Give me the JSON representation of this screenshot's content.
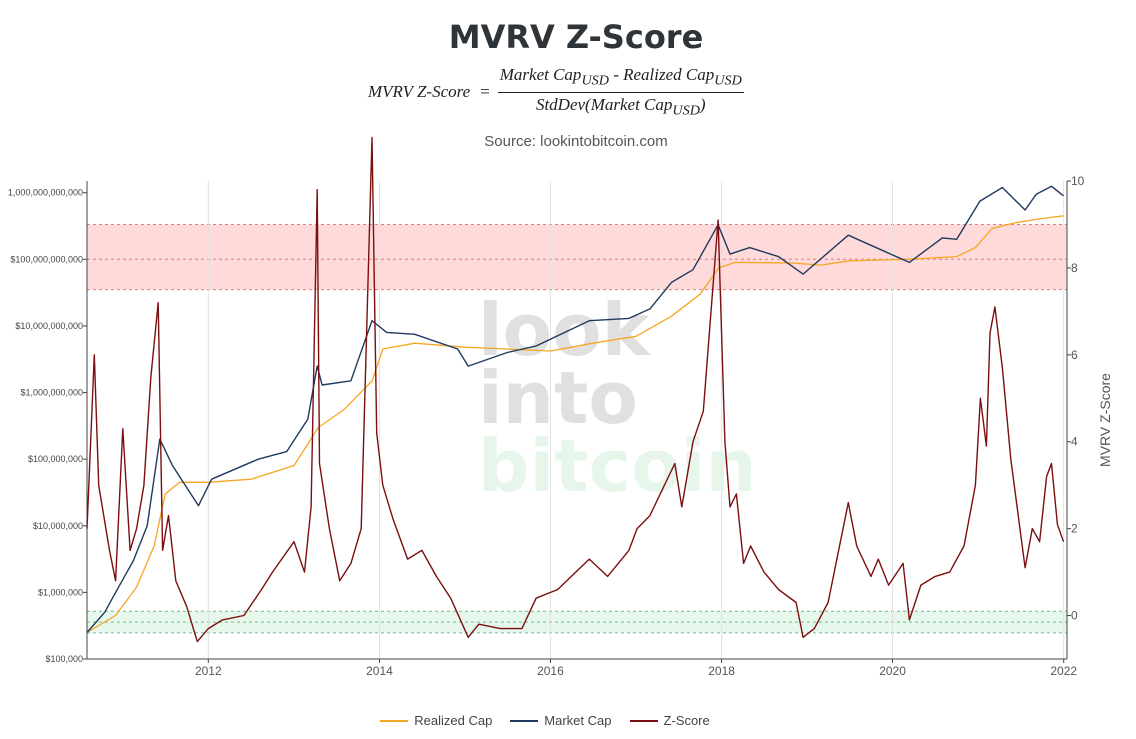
{
  "title": "MVRV Z-Score",
  "formula": {
    "lhs": "MVRV Z-Score",
    "eq": "=",
    "numerator": "Market Cap",
    "numerator_sub": "USD",
    "minus": " - Realized Cap",
    "minus_sub": "USD",
    "denominator": "StdDev(Market Cap",
    "denominator_sub": "USD",
    "denominator_end": ")"
  },
  "source": "Source: lookintobitcoin.com",
  "watermark": [
    "look",
    "into",
    "bitcoin"
  ],
  "colors": {
    "realized_cap": "#f5a623",
    "market_cap": "#1f3a5f",
    "zscore": "#7b0f0f",
    "red_band": "#ffdada",
    "green_band": "#e6f8ec"
  },
  "chart_data": {
    "type": "line",
    "xlim": [
      "2010-08-01",
      "2022-01-15"
    ],
    "x_ticks": [
      "2012",
      "2014",
      "2016",
      "2018",
      "2020",
      "2022"
    ],
    "y_left": {
      "scale": "log",
      "range": [
        100000,
        1500000000000
      ],
      "tick_values": [
        100000,
        1000000,
        10000000,
        100000000,
        1000000000,
        10000000000,
        100000000000,
        1000000000000
      ],
      "tick_labels": [
        "$100,000",
        "$1,000,000",
        "$10,000,000",
        "$100,000,000",
        "$1,000,000,000",
        "$10,000,000,000",
        "$100,000,000,000",
        "1,000,000,000,000"
      ]
    },
    "y_right": {
      "label": "MVRV Z-Score",
      "range": [
        -1,
        10
      ],
      "tick_values": [
        0,
        2,
        4,
        6,
        8,
        10
      ],
      "tick_labels": [
        "0",
        "2",
        "4",
        "6",
        "8",
        "10"
      ]
    },
    "bands": [
      {
        "name": "red",
        "axis": "right",
        "from": 7.5,
        "to": 9.0,
        "mid": 8.2
      },
      {
        "name": "green",
        "axis": "right",
        "from": -0.4,
        "to": 0.1,
        "mid": -0.15
      }
    ],
    "series": [
      {
        "name": "Realized Cap",
        "axis": "left",
        "color": "#f5a623",
        "points": [
          [
            "2010-08-01",
            250000
          ],
          [
            "2010-12-01",
            450000
          ],
          [
            "2011-03-01",
            1200000
          ],
          [
            "2011-05-15",
            5000000
          ],
          [
            "2011-07-01",
            30000000
          ],
          [
            "2011-09-01",
            45000000
          ],
          [
            "2012-01-01",
            45000000
          ],
          [
            "2012-07-01",
            50000000
          ],
          [
            "2013-01-01",
            80000000
          ],
          [
            "2013-04-15",
            300000000
          ],
          [
            "2013-08-01",
            550000000
          ],
          [
            "2013-12-01",
            1500000000
          ],
          [
            "2014-01-15",
            4500000000
          ],
          [
            "2014-06-01",
            5500000000
          ],
          [
            "2015-01-01",
            4800000000
          ],
          [
            "2016-01-01",
            4200000000
          ],
          [
            "2016-07-01",
            5500000000
          ],
          [
            "2017-01-01",
            7000000000
          ],
          [
            "2017-06-01",
            14000000000
          ],
          [
            "2017-10-01",
            30000000000
          ],
          [
            "2017-12-20",
            75000000000
          ],
          [
            "2018-03-01",
            90000000000
          ],
          [
            "2018-11-01",
            88000000000
          ],
          [
            "2019-03-01",
            82000000000
          ],
          [
            "2019-07-01",
            95000000000
          ],
          [
            "2020-03-01",
            100000000000
          ],
          [
            "2020-10-01",
            110000000000
          ],
          [
            "2020-12-20",
            150000000000
          ],
          [
            "2021-03-01",
            290000000000
          ],
          [
            "2021-06-01",
            350000000000
          ],
          [
            "2021-10-01",
            410000000000
          ],
          [
            "2021-12-31",
            450000000000
          ]
        ]
      },
      {
        "name": "Market Cap",
        "axis": "left",
        "color": "#1f3a5f",
        "points": [
          [
            "2010-08-01",
            250000
          ],
          [
            "2010-10-15",
            500000
          ],
          [
            "2010-12-01",
            1000000
          ],
          [
            "2011-02-15",
            3000000
          ],
          [
            "2011-04-15",
            10000000
          ],
          [
            "2011-06-08",
            200000000
          ],
          [
            "2011-08-01",
            80000000
          ],
          [
            "2011-11-20",
            20000000
          ],
          [
            "2012-01-15",
            50000000
          ],
          [
            "2012-08-01",
            100000000
          ],
          [
            "2012-12-01",
            130000000
          ],
          [
            "2013-03-01",
            400000000
          ],
          [
            "2013-04-10",
            2500000000
          ],
          [
            "2013-05-01",
            1300000000
          ],
          [
            "2013-09-01",
            1500000000
          ],
          [
            "2013-11-30",
            12000000000
          ],
          [
            "2014-02-01",
            8000000000
          ],
          [
            "2014-06-01",
            7500000000
          ],
          [
            "2014-12-01",
            4500000000
          ],
          [
            "2015-01-15",
            2500000000
          ],
          [
            "2015-07-01",
            4000000000
          ],
          [
            "2015-11-01",
            5000000000
          ],
          [
            "2016-06-15",
            12000000000
          ],
          [
            "2016-12-01",
            13000000000
          ],
          [
            "2017-03-01",
            18000000000
          ],
          [
            "2017-06-01",
            45000000000
          ],
          [
            "2017-09-01",
            70000000000
          ],
          [
            "2017-12-17",
            330000000000
          ],
          [
            "2018-02-06",
            120000000000
          ],
          [
            "2018-05-01",
            150000000000
          ],
          [
            "2018-09-01",
            110000000000
          ],
          [
            "2018-12-15",
            60000000000
          ],
          [
            "2019-06-26",
            230000000000
          ],
          [
            "2019-12-01",
            130000000000
          ],
          [
            "2020-03-13",
            90000000000
          ],
          [
            "2020-08-01",
            210000000000
          ],
          [
            "2020-10-01",
            200000000000
          ],
          [
            "2021-01-08",
            750000000000
          ],
          [
            "2021-04-14",
            1200000000000
          ],
          [
            "2021-07-20",
            550000000000
          ],
          [
            "2021-09-06",
            950000000000
          ],
          [
            "2021-11-10",
            1250000000000
          ],
          [
            "2021-12-31",
            900000000000
          ]
        ]
      },
      {
        "name": "Z-Score",
        "axis": "right",
        "color": "#7b0f0f",
        "points": [
          [
            "2010-08-01",
            2.0
          ],
          [
            "2010-09-01",
            6.0
          ],
          [
            "2010-09-20",
            3.0
          ],
          [
            "2010-11-05",
            1.5
          ],
          [
            "2010-12-01",
            0.8
          ],
          [
            "2011-01-01",
            4.3
          ],
          [
            "2011-02-01",
            1.5
          ],
          [
            "2011-03-01",
            2.0
          ],
          [
            "2011-04-01",
            3.0
          ],
          [
            "2011-05-01",
            5.5
          ],
          [
            "2011-06-01",
            7.2
          ],
          [
            "2011-06-20",
            1.5
          ],
          [
            "2011-07-15",
            2.3
          ],
          [
            "2011-08-15",
            0.8
          ],
          [
            "2011-10-01",
            0.2
          ],
          [
            "2011-11-15",
            -0.6
          ],
          [
            "2012-01-01",
            -0.3
          ],
          [
            "2012-03-01",
            -0.1
          ],
          [
            "2012-06-01",
            0.0
          ],
          [
            "2012-08-15",
            0.6
          ],
          [
            "2012-10-01",
            1.0
          ],
          [
            "2013-01-01",
            1.7
          ],
          [
            "2013-02-15",
            1.0
          ],
          [
            "2013-03-15",
            2.5
          ],
          [
            "2013-04-10",
            9.8
          ],
          [
            "2013-04-20",
            3.5
          ],
          [
            "2013-06-01",
            2.0
          ],
          [
            "2013-07-15",
            0.8
          ],
          [
            "2013-09-01",
            1.2
          ],
          [
            "2013-10-15",
            2.0
          ],
          [
            "2013-11-30",
            11.0
          ],
          [
            "2013-12-20",
            4.2
          ],
          [
            "2014-01-15",
            3.0
          ],
          [
            "2014-03-01",
            2.2
          ],
          [
            "2014-05-01",
            1.3
          ],
          [
            "2014-07-01",
            1.5
          ],
          [
            "2014-09-01",
            0.9
          ],
          [
            "2014-11-01",
            0.4
          ],
          [
            "2015-01-15",
            -0.5
          ],
          [
            "2015-03-01",
            -0.2
          ],
          [
            "2015-06-01",
            -0.3
          ],
          [
            "2015-09-01",
            -0.3
          ],
          [
            "2015-11-01",
            0.4
          ],
          [
            "2016-02-01",
            0.6
          ],
          [
            "2016-06-15",
            1.3
          ],
          [
            "2016-09-01",
            0.9
          ],
          [
            "2016-12-01",
            1.5
          ],
          [
            "2017-01-05",
            2.0
          ],
          [
            "2017-03-01",
            2.3
          ],
          [
            "2017-06-15",
            3.5
          ],
          [
            "2017-07-15",
            2.5
          ],
          [
            "2017-09-01",
            4.0
          ],
          [
            "2017-10-15",
            4.7
          ],
          [
            "2017-12-17",
            9.1
          ],
          [
            "2018-01-15",
            4.0
          ],
          [
            "2018-02-06",
            2.5
          ],
          [
            "2018-03-05",
            2.8
          ],
          [
            "2018-04-05",
            1.2
          ],
          [
            "2018-05-05",
            1.6
          ],
          [
            "2018-07-01",
            1.0
          ],
          [
            "2018-09-01",
            0.6
          ],
          [
            "2018-11-15",
            0.3
          ],
          [
            "2018-12-15",
            -0.5
          ],
          [
            "2019-02-01",
            -0.3
          ],
          [
            "2019-04-01",
            0.3
          ],
          [
            "2019-06-26",
            2.6
          ],
          [
            "2019-08-01",
            1.6
          ],
          [
            "2019-10-01",
            0.9
          ],
          [
            "2019-11-01",
            1.3
          ],
          [
            "2019-12-15",
            0.7
          ],
          [
            "2020-02-15",
            1.2
          ],
          [
            "2020-03-13",
            -0.1
          ],
          [
            "2020-05-01",
            0.7
          ],
          [
            "2020-07-01",
            0.9
          ],
          [
            "2020-09-01",
            1.0
          ],
          [
            "2020-11-01",
            1.6
          ],
          [
            "2020-12-20",
            3.0
          ],
          [
            "2021-01-10",
            5.0
          ],
          [
            "2021-02-05",
            3.9
          ],
          [
            "2021-02-20",
            6.5
          ],
          [
            "2021-03-13",
            7.1
          ],
          [
            "2021-04-14",
            5.7
          ],
          [
            "2021-05-20",
            3.6
          ],
          [
            "2021-07-20",
            1.1
          ],
          [
            "2021-08-20",
            2.0
          ],
          [
            "2021-09-20",
            1.7
          ],
          [
            "2021-10-20",
            3.2
          ],
          [
            "2021-11-10",
            3.5
          ],
          [
            "2021-12-05",
            2.1
          ],
          [
            "2021-12-31",
            1.7
          ]
        ]
      }
    ],
    "legend": [
      "Realized Cap",
      "Market Cap",
      "Z-Score"
    ],
    "legend_position": "bottom"
  }
}
